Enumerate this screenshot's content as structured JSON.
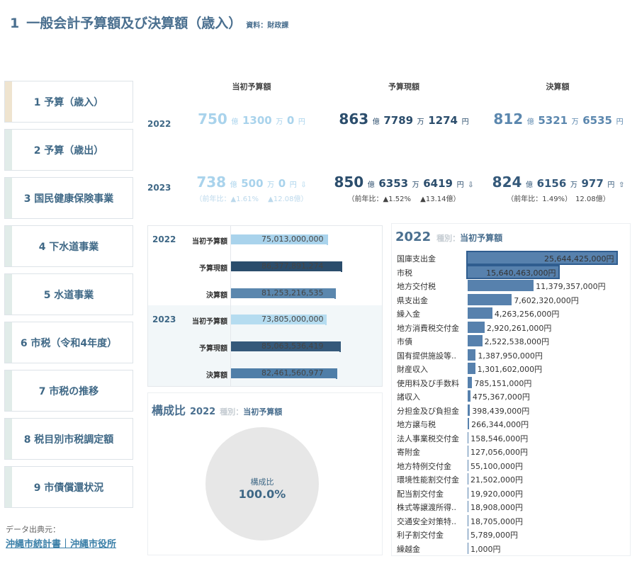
{
  "header": {
    "number": "1",
    "title": "一般会計予算額及び決算額（歳入）",
    "source": "資料：財政課"
  },
  "sidebar": {
    "items": [
      {
        "label": "1  予算（歳入）"
      },
      {
        "label": "2  予算（歳出）"
      },
      {
        "label": "3  国民健康保険事業"
      },
      {
        "label": "4  下水道事業"
      },
      {
        "label": "5  水道事業"
      },
      {
        "label": "6  市税（令和4年度）"
      },
      {
        "label": "7  市税の推移"
      },
      {
        "label": "8  税目別市税調定額"
      },
      {
        "label": "9  市債償還状況"
      }
    ],
    "data_source_label": "データ出典元：",
    "data_source_link": "沖縄市統計書｜沖縄市役所"
  },
  "kpi": {
    "headers": {
      "initial": "当初予算額",
      "current": "予算現額",
      "settled": "決算額"
    },
    "units": {
      "oku": "億",
      "man": "万",
      "en": "円"
    },
    "y2022": {
      "year": "2022",
      "initial": {
        "oku": "750",
        "man": "1300",
        "en": "0"
      },
      "current": {
        "oku": "863",
        "man": "7789",
        "en": "1274"
      },
      "settled": {
        "oku": "812",
        "man": "5321",
        "en": "6535"
      }
    },
    "y2023": {
      "year": "2023",
      "initial": {
        "oku": "738",
        "man": "500",
        "en": "0",
        "arrow": "⇩",
        "sub": "（前年比：▲1.61%　 ▲12.08億）"
      },
      "current": {
        "oku": "850",
        "man": "6353",
        "en": "6419",
        "arrow": "⇩",
        "sub": "（前年比：▲1.52%　 ▲13.14億）"
      },
      "settled": {
        "oku": "824",
        "man": "6156",
        "en": "977",
        "arrow": "⇧",
        "sub": "（前年比：1.49%）　12.08億）"
      }
    }
  },
  "bar_panel": {
    "groups": [
      {
        "year": "2022",
        "rows": [
          {
            "label": "当初予算額",
            "value": 75013000000,
            "text": "75,013,000,000",
            "color": "#a9d3ec"
          },
          {
            "label": "予算現額",
            "value": 86377891274,
            "text": "86,377,891,274",
            "color": "#2b4d6c"
          },
          {
            "label": "決算額",
            "value": 81253216535,
            "text": "81,253,216,535",
            "color": "#5b87ae"
          }
        ]
      },
      {
        "year": "2023",
        "rows": [
          {
            "label": "当初予算額",
            "value": 73805000000,
            "text": "73,805,000,000",
            "color": "#b5dcf0"
          },
          {
            "label": "予算現額",
            "value": 85063536419,
            "text": "85,063,536,419",
            "color": "#35597a"
          },
          {
            "label": "決算額",
            "value": 82461560977,
            "text": "82,461,560,977",
            "color": "#4f7ea8"
          }
        ]
      }
    ],
    "max": 100000000000
  },
  "composition": {
    "title": "構成比",
    "year": "2022",
    "kind_label": "種別：",
    "kind_value": "当初予算額",
    "pie_label": "構成比",
    "pie_value": "100.0%"
  },
  "revenue_list": {
    "year": "2022",
    "kind_label": "種別：",
    "kind_value": "当初予算額",
    "max": 25644425000,
    "items": [
      {
        "name": "国庫支出金",
        "value": 25644425000,
        "text": "25,644,425,000円"
      },
      {
        "name": "市税",
        "value": 15640463000,
        "text": "15,640,463,000円"
      },
      {
        "name": "地方交付税",
        "value": 11379357000,
        "text": "11,379,357,000円"
      },
      {
        "name": "県支出金",
        "value": 7602320000,
        "text": "7,602,320,000円"
      },
      {
        "name": "繰入金",
        "value": 4263256000,
        "text": "4,263,256,000円"
      },
      {
        "name": "地方消費税交付金",
        "value": 2920261000,
        "text": "2,920,261,000円"
      },
      {
        "name": "市債",
        "value": 2522538000,
        "text": "2,522,538,000円"
      },
      {
        "name": "国有提供施設等..",
        "value": 1387950000,
        "text": "1,387,950,000円"
      },
      {
        "name": "財産収入",
        "value": 1301602000,
        "text": "1,301,602,000円"
      },
      {
        "name": "使用料及び手数料",
        "value": 785151000,
        "text": "785,151,000円"
      },
      {
        "name": "諸収入",
        "value": 475367000,
        "text": "475,367,000円"
      },
      {
        "name": "分担金及び負担金",
        "value": 398439000,
        "text": "398,439,000円"
      },
      {
        "name": "地方譲与税",
        "value": 266344000,
        "text": "266,344,000円"
      },
      {
        "name": "法人事業税交付金",
        "value": 158546000,
        "text": "158,546,000円"
      },
      {
        "name": "寄附金",
        "value": 127056000,
        "text": "127,056,000円"
      },
      {
        "name": "地方特例交付金",
        "value": 55100000,
        "text": "55,100,000円"
      },
      {
        "name": "環境性能割交付金",
        "value": 21502000,
        "text": "21,502,000円"
      },
      {
        "name": "配当割交付金",
        "value": 19920000,
        "text": "19,920,000円"
      },
      {
        "name": "株式等譲渡所得..",
        "value": 18908000,
        "text": "18,908,000円"
      },
      {
        "name": "交通安全対策特..",
        "value": 18705000,
        "text": "18,705,000円"
      },
      {
        "name": "利子割交付金",
        "value": 5789000,
        "text": "5,789,000円"
      },
      {
        "name": "繰越金",
        "value": 1000,
        "text": "1,000円"
      }
    ]
  }
}
